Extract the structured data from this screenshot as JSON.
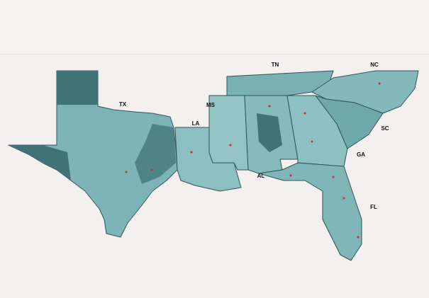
{
  "state_labels": [
    "TX",
    "LA",
    "MS",
    "AL",
    "TN",
    "NC",
    "SC",
    "GA",
    "FL"
  ]
}
